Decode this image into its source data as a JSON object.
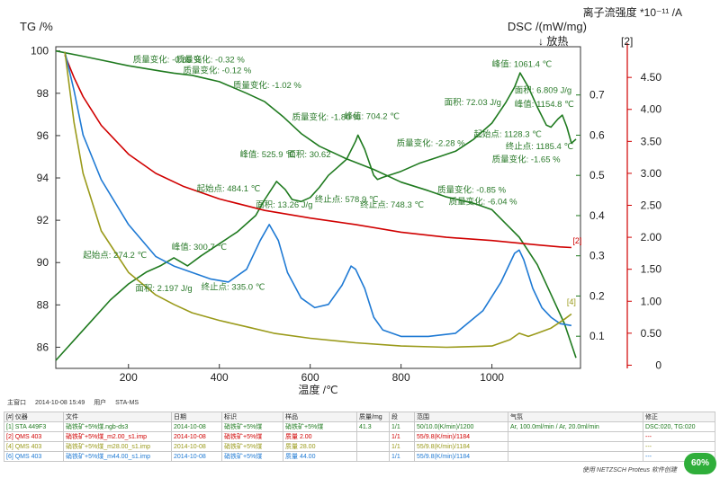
{
  "chart_data": {
    "type": "line",
    "xlabel": "温度 /℃",
    "x_ticks": [
      200,
      400,
      600,
      800,
      1000
    ],
    "xlim": [
      40,
      1195
    ],
    "axes": {
      "tg": {
        "label": "TG /%",
        "ticks": [
          86,
          88,
          90,
          92,
          94,
          96,
          98,
          100
        ],
        "ylim": [
          85,
          100.2
        ],
        "color": "#000000"
      },
      "dsc": {
        "label": "DSC /(mW/mg)",
        "sublabel": "↓ 放热",
        "ticks": [
          0.1,
          0.2,
          0.3,
          0.4,
          0.5,
          0.6,
          0.7
        ],
        "ylim": [
          0.02,
          0.82
        ],
        "color": "#1f7a1f"
      },
      "ion": {
        "label": "离子流强度 *10⁻¹¹ /A",
        "index": "[2]",
        "ticks": [
          0,
          0.5,
          1.0,
          1.5,
          2.0,
          2.5,
          3.0,
          3.5,
          4.0,
          4.5
        ],
        "tick_labels": [
          "0",
          "0.50",
          "1.00",
          "1.50",
          "2.00",
          "2.50",
          "3.00",
          "3.50",
          "4.00",
          "4.50"
        ],
        "ylim": [
          -0.05,
          4.98
        ],
        "color": "#d00000"
      }
    },
    "series": [
      {
        "axis": "tg",
        "color": "#1f7a1f",
        "x": [
          40,
          100,
          200,
          270,
          300,
          340,
          360,
          400,
          460,
          500,
          540,
          580,
          620,
          680,
          740,
          800,
          860,
          900,
          960,
          1000,
          1060,
          1100,
          1130,
          1160,
          1185
        ],
        "y": [
          100.0,
          99.75,
          99.3,
          99.05,
          98.95,
          98.85,
          98.75,
          98.55,
          98.0,
          97.6,
          96.9,
          96.1,
          95.5,
          94.9,
          94.4,
          93.8,
          93.4,
          93.1,
          92.8,
          92.5,
          91.2,
          89.9,
          88.5,
          87.1,
          85.5
        ]
      },
      {
        "axis": "dsc",
        "color": "#1f7a1f",
        "x": [
          40,
          80,
          120,
          160,
          200,
          240,
          270,
          300,
          330,
          360,
          400,
          440,
          480,
          500,
          526,
          545,
          560,
          580,
          600,
          620,
          640,
          660,
          680,
          700,
          705,
          720,
          740,
          748,
          760,
          800,
          840,
          880,
          920,
          960,
          1000,
          1030,
          1050,
          1062,
          1080,
          1100,
          1120,
          1130,
          1145,
          1155,
          1165,
          1175,
          1185
        ],
        "y": [
          0.04,
          0.09,
          0.14,
          0.19,
          0.23,
          0.26,
          0.275,
          0.295,
          0.275,
          0.3,
          0.33,
          0.36,
          0.4,
          0.44,
          0.485,
          0.465,
          0.44,
          0.435,
          0.445,
          0.47,
          0.5,
          0.52,
          0.54,
          0.585,
          0.6,
          0.565,
          0.5,
          0.49,
          0.495,
          0.51,
          0.53,
          0.545,
          0.56,
          0.59,
          0.63,
          0.68,
          0.72,
          0.755,
          0.72,
          0.67,
          0.625,
          0.62,
          0.64,
          0.65,
          0.62,
          0.58,
          0.59
        ]
      },
      {
        "axis": "ion",
        "color": "#d00000",
        "x": [
          60,
          80,
          100,
          140,
          200,
          260,
          320,
          400,
          500,
          600,
          700,
          800,
          900,
          1000,
          1100,
          1150,
          1175
        ],
        "y": [
          4.85,
          4.5,
          4.2,
          3.75,
          3.3,
          3.0,
          2.8,
          2.6,
          2.42,
          2.3,
          2.2,
          2.08,
          2.0,
          1.95,
          1.88,
          1.85,
          1.84
        ]
      },
      {
        "axis": "ion",
        "color": "#1f7ad4",
        "x": [
          60,
          80,
          100,
          140,
          200,
          260,
          300,
          340,
          380,
          420,
          460,
          490,
          510,
          530,
          550,
          580,
          610,
          640,
          670,
          690,
          700,
          720,
          740,
          760,
          800,
          860,
          920,
          980,
          1020,
          1050,
          1060,
          1070,
          1090,
          1110,
          1130,
          1150,
          1175
        ],
        "y": [
          4.9,
          4.3,
          3.6,
          2.9,
          2.2,
          1.7,
          1.55,
          1.45,
          1.35,
          1.3,
          1.5,
          1.95,
          2.2,
          1.95,
          1.45,
          1.05,
          0.9,
          0.95,
          1.25,
          1.55,
          1.5,
          1.2,
          0.75,
          0.55,
          0.45,
          0.45,
          0.5,
          0.85,
          1.3,
          1.75,
          1.8,
          1.65,
          1.2,
          0.9,
          0.75,
          0.65,
          0.62
        ]
      },
      {
        "axis": "ion",
        "color": "#9a9a1a",
        "x": [
          60,
          80,
          100,
          140,
          200,
          260,
          300,
          340,
          400,
          460,
          520,
          600,
          700,
          800,
          900,
          1000,
          1040,
          1060,
          1080,
          1100,
          1130,
          1160,
          1175
        ],
        "y": [
          4.9,
          3.8,
          3.0,
          2.1,
          1.45,
          1.1,
          0.95,
          0.82,
          0.7,
          0.6,
          0.5,
          0.42,
          0.35,
          0.3,
          0.28,
          0.3,
          0.4,
          0.5,
          0.45,
          0.5,
          0.58,
          0.72,
          0.8
        ]
      }
    ],
    "annotations": [
      {
        "text": "质量变化: -0.85 %",
        "x": 210,
        "y": 99.45,
        "axis": "tg"
      },
      {
        "text": "质量变化: -0.32 %",
        "x": 305,
        "y": 99.45,
        "axis": "tg"
      },
      {
        "text": "质量变化: -0.12 %",
        "x": 320,
        "y": 98.95,
        "axis": "tg"
      },
      {
        "text": "质量变化: -1.02 %",
        "x": 430,
        "y": 98.25,
        "axis": "tg"
      },
      {
        "text": "质量变化: -1.80 %",
        "x": 560,
        "y": 96.75,
        "axis": "tg"
      },
      {
        "text": "质量变化: -2.28 %",
        "x": 790,
        "y": 95.5,
        "axis": "tg"
      },
      {
        "text": "质量变化: -0.85 %",
        "x": 880,
        "y": 93.3,
        "axis": "tg"
      },
      {
        "text": "质量变化: -6.04 %",
        "x": 905,
        "y": 92.75,
        "axis": "tg"
      },
      {
        "text": "质量变化: -1.65 %",
        "x": 1000,
        "y": 94.75,
        "axis": "tg"
      },
      {
        "text": "峰值: 1061.4 ℃",
        "x": 1000,
        "y": 0.77,
        "axis": "dsc"
      },
      {
        "text": "面积: 6.809 J/g",
        "x": 1050,
        "y": 0.705,
        "axis": "dsc"
      },
      {
        "text": "面积: 72.03 J/g",
        "x": 895,
        "y": 0.675,
        "axis": "dsc"
      },
      {
        "text": "峰值: 1154.8 ℃",
        "x": 1050,
        "y": 0.67,
        "axis": "dsc"
      },
      {
        "text": "起始点: 1128.3 ℃",
        "x": 960,
        "y": 0.595,
        "axis": "dsc"
      },
      {
        "text": "终止点: 1185.4 ℃",
        "x": 1030,
        "y": 0.565,
        "axis": "dsc"
      },
      {
        "text": "峰值: 704.2 ℃",
        "x": 675,
        "y": 0.64,
        "axis": "dsc"
      },
      {
        "text": "面积: 30.62",
        "x": 550,
        "y": 0.545,
        "axis": "dsc"
      },
      {
        "text": "峰值: 525.9 ℃",
        "x": 445,
        "y": 0.545,
        "axis": "dsc"
      },
      {
        "text": "起始点: 484.1 ℃",
        "x": 350,
        "y": 0.46,
        "axis": "dsc"
      },
      {
        "text": "面积: 13.26 J/g",
        "x": 480,
        "y": 0.42,
        "axis": "dsc"
      },
      {
        "text": "终止点: 578.9 ℃",
        "x": 610,
        "y": 0.433,
        "axis": "dsc"
      },
      {
        "text": "终止点: 748.3 ℃",
        "x": 710,
        "y": 0.42,
        "axis": "dsc"
      },
      {
        "text": "峰值: 300.7 ℃",
        "x": 295,
        "y": 0.315,
        "axis": "dsc"
      },
      {
        "text": "起始点: 274.2 ℃",
        "x": 100,
        "y": 0.295,
        "axis": "dsc"
      },
      {
        "text": "面积: 2.197 J/g",
        "x": 215,
        "y": 0.212,
        "axis": "dsc"
      },
      {
        "text": "终止点: 335.0 ℃",
        "x": 360,
        "y": 0.215,
        "axis": "dsc"
      }
    ],
    "curve_end_labels": [
      {
        "text": "[2]",
        "x": 1178,
        "y": 1.9,
        "color": "#d00000"
      },
      {
        "text": "[4]",
        "x": 1165,
        "y": 0.95,
        "color": "#9a9a1a"
      }
    ],
    "grid": false
  },
  "meta": {
    "window": "主窗口",
    "datetime": "2014-10-08 15:49",
    "user_label": "用户",
    "user": "STA-MS"
  },
  "table": {
    "headers": [
      "[#] 仪器",
      "文件",
      "日期",
      "标识",
      "样品",
      "质量/mg",
      "段",
      "范围",
      "气氛",
      "修正"
    ],
    "rows": [
      {
        "color": "#1f7a1f",
        "cells": [
          "[1] STA 449F3",
          "硝铁矿+5%煤.ngb-ds3",
          "2014-10-08",
          "硝铁矿+5%煤",
          "硝铁矿+5%煤",
          "41.3",
          "1/1",
          "50/10.0(K/min)/1200",
          "Ar, 100.0ml/min / Ar, 20.0ml/min",
          "DSC:020, TG:020"
        ]
      },
      {
        "color": "#d00000",
        "cells": [
          "[2] QMS 403",
          "硝铁矿+5%煤_m2.00_s1.imp",
          "2014-10-08",
          "硝铁矿+5%煤",
          "质量 2.00",
          "",
          "1/1",
          "55/9.8(K/min)/1184",
          "",
          "---"
        ]
      },
      {
        "color": "#9a9a1a",
        "cells": [
          "[4] QMS 403",
          "硝铁矿+5%煤_m28.00_s1.imp",
          "2014-10-08",
          "硝铁矿+5%煤",
          "质量 28.00",
          "",
          "1/1",
          "55/9.8(K/min)/1184",
          "",
          "---"
        ]
      },
      {
        "color": "#1f7ad4",
        "cells": [
          "[6] QMS 403",
          "硝铁矿+5%煤_m44.00_s1.imp",
          "2014-10-08",
          "硝铁矿+5%煤",
          "质量 44.00",
          "",
          "1/1",
          "55/9.8(K/min)/1184",
          "",
          "---"
        ]
      }
    ]
  },
  "footer_note": "使用 NETZSCH Proteus 软件创建",
  "zoom_badge": "60%"
}
